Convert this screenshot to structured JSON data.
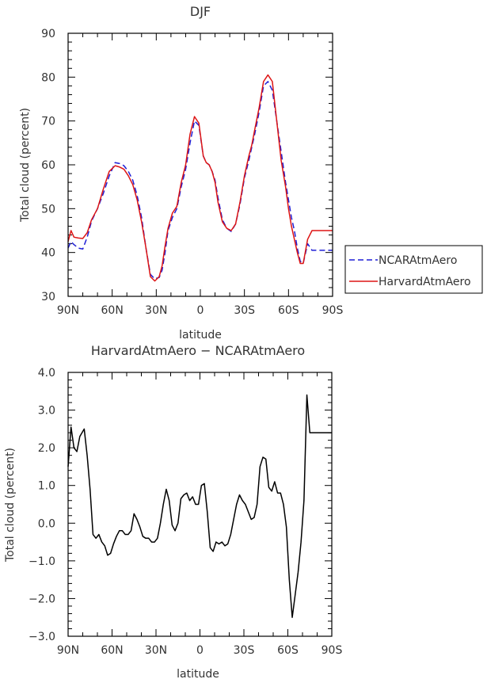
{
  "chart_data": [
    {
      "type": "line",
      "title": "DJF",
      "xlabel": "latitude",
      "ylabel": "Total cloud (percent)",
      "xlim": [
        -90,
        90
      ],
      "ylim": [
        30,
        90
      ],
      "x_ticks": [
        -90,
        -60,
        -30,
        0,
        30,
        60,
        90
      ],
      "x_tick_labels": [
        "90N",
        "60N",
        "30N",
        "0",
        "30S",
        "60S",
        "90S"
      ],
      "y_ticks": [
        30,
        40,
        50,
        60,
        70,
        80,
        90
      ],
      "y_tick_labels": [
        "30",
        "40",
        "50",
        "60",
        "70",
        "80",
        "90"
      ],
      "legend": "outside-right",
      "series": [
        {
          "name": "NCARAtmAero",
          "color": "#1f1fd6",
          "dash": true,
          "x": [
            -90,
            -88,
            -86,
            -83,
            -80,
            -77,
            -74,
            -70,
            -66,
            -62,
            -58,
            -55,
            -52,
            -49,
            -46,
            -43,
            -40,
            -37,
            -34,
            -31,
            -28,
            -26,
            -24,
            -22,
            -19,
            -16,
            -13,
            -10,
            -7,
            -4,
            -1,
            2,
            4,
            6,
            8,
            10,
            12,
            15,
            18,
            21,
            24,
            27,
            30,
            33,
            35,
            37,
            40,
            43,
            46,
            49,
            52,
            55,
            58,
            60,
            62,
            64,
            66,
            68,
            70,
            73,
            76,
            79,
            82,
            84,
            86,
            88,
            90
          ],
          "y": [
            41.0,
            42.5,
            41.8,
            41.0,
            40.8,
            43.5,
            47.2,
            50.0,
            53.5,
            57.5,
            60.5,
            60.3,
            59.8,
            58.5,
            56.5,
            53.0,
            48.0,
            41.0,
            35.0,
            34.0,
            34.3,
            36.0,
            40.0,
            45.0,
            48.0,
            50.0,
            55.0,
            59.0,
            65.0,
            70.0,
            69.0,
            62.0,
            60.5,
            60.0,
            58.5,
            56.5,
            52.5,
            47.5,
            45.5,
            44.8,
            46.5,
            51.0,
            57.0,
            61.0,
            64.0,
            67.0,
            72.0,
            78.0,
            79.0,
            77.0,
            70.0,
            63.0,
            56.0,
            52.0,
            48.0,
            45.0,
            41.0,
            38.0,
            37.5,
            42.0,
            40.5,
            40.5,
            40.5,
            40.5,
            40.5,
            40.5,
            40.5
          ]
        },
        {
          "name": "HarvardAtmAero",
          "color": "#dd1515",
          "dash": false,
          "x": [
            -90,
            -88,
            -86,
            -83,
            -80,
            -77,
            -74,
            -70,
            -66,
            -62,
            -58,
            -55,
            -52,
            -49,
            -46,
            -43,
            -40,
            -37,
            -34,
            -31,
            -28,
            -26,
            -24,
            -22,
            -19,
            -16,
            -13,
            -10,
            -7,
            -4,
            -1,
            2,
            4,
            6,
            8,
            10,
            12,
            15,
            18,
            21,
            24,
            27,
            30,
            33,
            35,
            37,
            40,
            43,
            46,
            49,
            52,
            55,
            58,
            60,
            62,
            64,
            66,
            68,
            70,
            73,
            76,
            79,
            82,
            84,
            86,
            88,
            90
          ],
          "y": [
            42.5,
            45.0,
            43.5,
            43.3,
            43.2,
            44.5,
            47.5,
            50.0,
            54.5,
            58.5,
            59.8,
            59.5,
            59.0,
            57.5,
            55.5,
            52.0,
            47.0,
            41.0,
            34.5,
            33.5,
            34.5,
            37.0,
            41.5,
            45.5,
            49.0,
            50.5,
            56.0,
            60.0,
            67.0,
            71.0,
            69.5,
            62.0,
            60.5,
            60.0,
            58.5,
            56.0,
            51.5,
            47.0,
            45.5,
            45.0,
            46.5,
            51.5,
            57.5,
            62.0,
            64.5,
            68.0,
            73.0,
            79.0,
            80.5,
            79.0,
            70.0,
            61.0,
            55.0,
            50.0,
            46.0,
            43.0,
            40.0,
            37.5,
            37.5,
            43.0,
            45.0,
            45.0,
            45.0,
            45.0,
            45.0,
            45.0,
            45.0
          ]
        }
      ]
    },
    {
      "type": "line",
      "title": "HarvardAtmAero − NCARAtmAero",
      "xlabel": "latitude",
      "ylabel": "Total cloud (percent)",
      "xlim": [
        -90,
        90
      ],
      "ylim": [
        -3.0,
        4.0
      ],
      "x_ticks": [
        -90,
        -60,
        -30,
        0,
        30,
        60,
        90
      ],
      "x_tick_labels": [
        "90N",
        "60N",
        "30N",
        "0",
        "30S",
        "60S",
        "90S"
      ],
      "y_ticks": [
        -3,
        -2,
        -1,
        0,
        1,
        2,
        3,
        4
      ],
      "y_tick_labels": [
        "−3.0",
        "−2.0",
        "−1.0",
        "0.0",
        "1.0",
        "2.0",
        "3.0",
        "4.0"
      ],
      "series": [
        {
          "color": "#000000",
          "dash": false,
          "x": [
            -90,
            -88,
            -86,
            -84,
            -82,
            -79,
            -77,
            -75,
            -73,
            -71,
            -69,
            -67,
            -65,
            -63,
            -61,
            -59,
            -57,
            -55,
            -53,
            -51,
            -49,
            -47,
            -45,
            -43,
            -41,
            -39,
            -37,
            -35,
            -33,
            -31,
            -29,
            -27,
            -25,
            -23,
            -21,
            -19,
            -17,
            -15,
            -13,
            -11,
            -9,
            -7,
            -5,
            -3,
            -1,
            1,
            3,
            5,
            7,
            9,
            11,
            13,
            15,
            17,
            19,
            21,
            23,
            25,
            27,
            29,
            31,
            33,
            35,
            37,
            39,
            41,
            43,
            45,
            47,
            49,
            51,
            53,
            55,
            57,
            59,
            61,
            63,
            65,
            67,
            69,
            71,
            73,
            75,
            77,
            79,
            81,
            83,
            85,
            87,
            89,
            90
          ],
          "y": [
            1.5,
            2.55,
            2.0,
            1.9,
            2.3,
            2.5,
            1.8,
            0.9,
            -0.3,
            -0.4,
            -0.3,
            -0.5,
            -0.6,
            -0.85,
            -0.8,
            -0.55,
            -0.35,
            -0.2,
            -0.2,
            -0.3,
            -0.3,
            -0.2,
            0.25,
            0.1,
            -0.1,
            -0.35,
            -0.4,
            -0.4,
            -0.5,
            -0.5,
            -0.4,
            0.0,
            0.5,
            0.9,
            0.6,
            -0.05,
            -0.2,
            0.0,
            0.65,
            0.75,
            0.8,
            0.6,
            0.7,
            0.5,
            0.5,
            1.0,
            1.05,
            0.3,
            -0.65,
            -0.75,
            -0.5,
            -0.55,
            -0.5,
            -0.6,
            -0.55,
            -0.3,
            0.1,
            0.5,
            0.75,
            0.6,
            0.5,
            0.3,
            0.1,
            0.15,
            0.5,
            1.5,
            1.75,
            1.7,
            0.95,
            0.85,
            1.1,
            0.8,
            0.8,
            0.5,
            -0.1,
            -1.5,
            -2.5,
            -1.9,
            -1.3,
            -0.5,
            0.6,
            3.4,
            2.4,
            2.4,
            2.4,
            2.4,
            2.4,
            2.4,
            2.4,
            2.4,
            2.4
          ]
        }
      ]
    }
  ]
}
